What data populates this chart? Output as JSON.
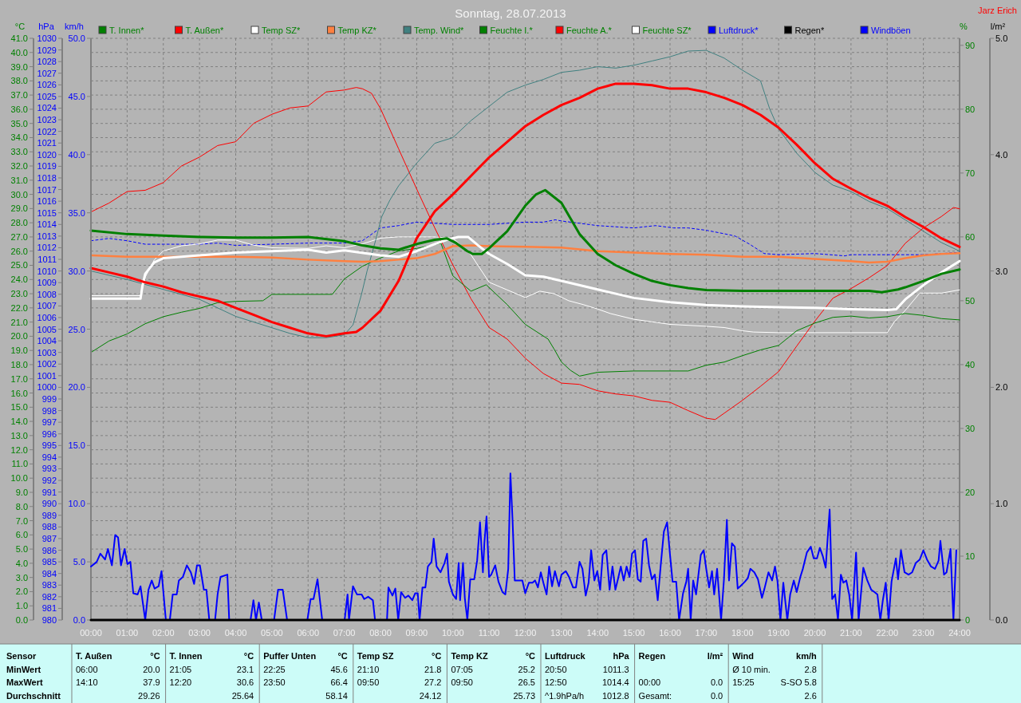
{
  "chart_data": [
    {
      "type": "line",
      "title": "Sonntag, 28.07.2013",
      "annotations": [
        "Jarz Erich"
      ],
      "legend": "top",
      "grid": true,
      "line_style": "solid",
      "ylabel": "°C",
      "y2label": "%",
      "y3label": "hPa",
      "xlim": [
        0,
        24
      ],
      "xticks": [
        {
          "value": 0,
          "label": "00:00"
        },
        {
          "value": 1,
          "label": "01:00"
        },
        {
          "value": 2,
          "label": "02:00"
        },
        {
          "value": 3,
          "label": "03:00"
        },
        {
          "value": 4,
          "label": "04:00"
        },
        {
          "value": 5,
          "label": "05:00"
        },
        {
          "value": 6,
          "label": "06:00"
        },
        {
          "value": 7,
          "label": "07:00"
        },
        {
          "value": 8,
          "label": "08:00"
        },
        {
          "value": 9,
          "label": "09:00"
        },
        {
          "value": 10,
          "label": "10:00"
        },
        {
          "value": 11,
          "label": "11:00"
        },
        {
          "value": 12,
          "label": "12:00"
        },
        {
          "value": 13,
          "label": "13:00"
        },
        {
          "value": 14,
          "label": "14:00"
        },
        {
          "value": 15,
          "label": "15:00"
        },
        {
          "value": 16,
          "label": "16:00"
        },
        {
          "value": 17,
          "label": "17:00"
        },
        {
          "value": 18,
          "label": "18:00"
        },
        {
          "value": 19,
          "label": "19:00"
        },
        {
          "value": 20,
          "label": "20:00"
        },
        {
          "value": 21,
          "label": "21:00"
        },
        {
          "value": 22,
          "label": "22:00"
        },
        {
          "value": 23,
          "label": "23:00"
        },
        {
          "value": 24,
          "label": "24:00"
        }
      ],
      "ylim": [
        0,
        41
      ],
      "yticks": [
        {
          "value": 0,
          "label": "0.0"
        },
        {
          "value": 1,
          "label": "1.0"
        },
        {
          "value": 2,
          "label": "2.0"
        },
        {
          "value": 3,
          "label": "3.0"
        },
        {
          "value": 4,
          "label": "4.0"
        },
        {
          "value": 5,
          "label": "5.0"
        },
        {
          "value": 6,
          "label": "6.0"
        },
        {
          "value": 7,
          "label": "7.0"
        },
        {
          "value": 8,
          "label": "8.0"
        },
        {
          "value": 9,
          "label": "9.0"
        },
        {
          "value": 10,
          "label": "10.0"
        },
        {
          "value": 11,
          "label": "11.0"
        },
        {
          "value": 12,
          "label": "12.0"
        },
        {
          "value": 13,
          "label": "13.0"
        },
        {
          "value": 14,
          "label": "14.0"
        },
        {
          "value": 15,
          "label": "15.0"
        },
        {
          "value": 16,
          "label": "16.0"
        },
        {
          "value": 17,
          "label": "17.0"
        },
        {
          "value": 18,
          "label": "18.0"
        },
        {
          "value": 19,
          "label": "19.0"
        },
        {
          "value": 20,
          "label": "20.0"
        },
        {
          "value": 21,
          "label": "21.0"
        },
        {
          "value": 22,
          "label": "22.0"
        },
        {
          "value": 23,
          "label": "23.0"
        },
        {
          "value": 24,
          "label": "24.0"
        },
        {
          "value": 25,
          "label": "25.0"
        },
        {
          "value": 26,
          "label": "26.0"
        },
        {
          "value": 27,
          "label": "27.0"
        },
        {
          "value": 28,
          "label": "28.0"
        },
        {
          "value": 29,
          "label": "29.0"
        },
        {
          "value": 30,
          "label": "30.0"
        },
        {
          "value": 31,
          "label": "31.0"
        },
        {
          "value": 32,
          "label": "32.0"
        },
        {
          "value": 33,
          "label": "33.0"
        },
        {
          "value": 34,
          "label": "34.0"
        },
        {
          "value": 35,
          "label": "35.0"
        },
        {
          "value": 36,
          "label": "36.0"
        },
        {
          "value": 37,
          "label": "37.0"
        },
        {
          "value": 38,
          "label": "38.0"
        },
        {
          "value": 39,
          "label": "39.0"
        },
        {
          "value": 40,
          "label": "40.0"
        },
        {
          "value": 41,
          "label": "41.0"
        }
      ],
      "y2lim": [
        0,
        91.1
      ],
      "y2ticks": [
        0,
        10,
        20,
        30,
        40,
        50,
        60,
        70,
        80,
        90
      ],
      "y3lim": [
        980,
        1030
      ],
      "y3ticks": [
        980,
        981,
        982,
        983,
        984,
        985,
        986,
        987,
        988,
        989,
        990,
        991,
        992,
        993,
        994,
        995,
        996,
        997,
        998,
        999,
        1000,
        1001,
        1002,
        1003,
        1004,
        1005,
        1006,
        1007,
        1008,
        1009,
        1010,
        1011,
        1012,
        1013,
        1014,
        1015,
        1016,
        1017,
        1018,
        1019,
        1020,
        1021,
        1022,
        1023,
        1024,
        1025,
        1026,
        1027,
        1028,
        1029,
        1030
      ],
      "series": [
        {
          "name": "T. Innen*",
          "color": "#008000",
          "axis": "y",
          "x": [
            0,
            1,
            2,
            3,
            4,
            5,
            6,
            7,
            7.5,
            8,
            8.5,
            9,
            9.5,
            9.83,
            10.07,
            10.4,
            10.55,
            10.8,
            11,
            11.5,
            12,
            12.3,
            12.55,
            13,
            13.5,
            14,
            14.5,
            15,
            15.5,
            16,
            16.5,
            17,
            18,
            19,
            20,
            21,
            21.5,
            21.85,
            22.3,
            22.5,
            23,
            23.5,
            24
          ],
          "values": [
            27.45,
            27.2,
            27.1,
            27.0,
            26.95,
            26.95,
            27.0,
            26.7,
            26.4,
            26.2,
            26.1,
            26.5,
            26.8,
            26.9,
            26.6,
            26.0,
            25.8,
            25.8,
            26.2,
            27.4,
            29.2,
            30.0,
            30.3,
            29.4,
            27.2,
            25.8,
            25.0,
            24.4,
            23.9,
            23.6,
            23.4,
            23.25,
            23.2,
            23.2,
            23.2,
            23.2,
            23.2,
            23.1,
            23.3,
            23.45,
            23.9,
            24.4,
            24.7
          ]
        },
        {
          "name": "T. Außen*",
          "color": "#ff0000",
          "axis": "y",
          "x": [
            0,
            0.5,
            1,
            1.5,
            2,
            2.5,
            3,
            3.5,
            4,
            4.5,
            5,
            5.5,
            6,
            6.5,
            7,
            7.33,
            7.5,
            8,
            8.5,
            9,
            9.5,
            10,
            10.5,
            11,
            11.5,
            12,
            12.5,
            13,
            13.5,
            14,
            14.5,
            15,
            15.5,
            16,
            16.5,
            17,
            17.5,
            18,
            18.5,
            19,
            19.5,
            20,
            20.5,
            21,
            21.5,
            22,
            22.5,
            23,
            23.5,
            24
          ],
          "values": [
            24.8,
            24.5,
            24.2,
            23.8,
            23.5,
            23.1,
            22.8,
            22.5,
            22.0,
            21.5,
            21.0,
            20.6,
            20.2,
            20.0,
            20.2,
            20.3,
            20.6,
            21.8,
            23.9,
            26.9,
            28.8,
            30.0,
            31.3,
            32.6,
            33.7,
            34.8,
            35.6,
            36.3,
            36.8,
            37.45,
            37.8,
            37.8,
            37.7,
            37.45,
            37.45,
            37.2,
            36.8,
            36.3,
            35.6,
            34.7,
            33.5,
            32.2,
            31.1,
            30.4,
            29.75,
            29.2,
            28.4,
            27.7,
            26.9,
            26.3
          ]
        },
        {
          "name": "Temp SZ*",
          "color": "#ffffff",
          "axis": "y",
          "x": [
            0,
            1.37,
            1.42,
            1.5,
            1.75,
            2,
            2.5,
            3,
            4,
            5,
            6,
            6.5,
            7,
            8,
            8.5,
            9,
            9.5,
            9.83,
            10.15,
            10.42,
            10.7,
            11,
            11.5,
            12,
            12.5,
            13,
            14,
            15,
            16,
            17,
            18,
            19,
            20,
            21,
            22,
            22.25,
            22.5,
            23,
            23.5,
            24
          ],
          "values": [
            22.65,
            22.65,
            23.5,
            24.4,
            25.2,
            25.5,
            25.6,
            25.7,
            25.9,
            26.0,
            26.1,
            25.9,
            26.05,
            25.7,
            25.6,
            26.0,
            26.5,
            26.8,
            27.0,
            27.0,
            26.4,
            25.8,
            25.1,
            24.3,
            24.2,
            23.9,
            23.3,
            22.7,
            22.4,
            22.2,
            22.1,
            22.05,
            22.0,
            21.9,
            21.85,
            21.9,
            22.6,
            23.6,
            24.5,
            25.3
          ]
        },
        {
          "name": "Temp KZ*",
          "color": "#ff8040",
          "axis": "y",
          "x": [
            0,
            1,
            2,
            3,
            4,
            5,
            6,
            7,
            7.5,
            8,
            8.5,
            9,
            9.5,
            10,
            10.5,
            11,
            12,
            13,
            14,
            15,
            16,
            17,
            18,
            19,
            20,
            21,
            21.5,
            22,
            22.5,
            23,
            23.5,
            24
          ],
          "values": [
            25.7,
            25.6,
            25.6,
            25.6,
            25.6,
            25.55,
            25.4,
            25.3,
            25.25,
            25.3,
            25.4,
            25.5,
            25.8,
            26.35,
            26.4,
            26.35,
            26.3,
            26.25,
            26.0,
            25.9,
            25.8,
            25.75,
            25.6,
            25.6,
            25.45,
            25.3,
            25.2,
            25.25,
            25.5,
            25.7,
            25.8,
            25.85
          ]
        },
        {
          "name": "Temp. Wind*",
          "color": "#408080",
          "axis": "y",
          "x": [
            0,
            1,
            2,
            3,
            4,
            5,
            5.5,
            6,
            6.5,
            7,
            7.24,
            7.48,
            7.63,
            7.87,
            8.03,
            8.26,
            8.5,
            9,
            9.5,
            10,
            10.5,
            11,
            11.5,
            12,
            12.5,
            13,
            13.5,
            14,
            14.5,
            15,
            15.5,
            16,
            16.5,
            17,
            17.5,
            18,
            18.5,
            18.75,
            19,
            19.5,
            20,
            20.5,
            21,
            21.5,
            22,
            22.5,
            23,
            23.5,
            24
          ],
          "values": [
            24.6,
            24.0,
            23.3,
            22.6,
            21.4,
            20.6,
            20.2,
            19.9,
            19.9,
            20.1,
            20.8,
            23.0,
            24.6,
            26.8,
            28.4,
            29.6,
            30.6,
            32.2,
            33.6,
            34.0,
            35.2,
            36.2,
            37.2,
            37.7,
            38.1,
            38.6,
            38.75,
            39.0,
            38.9,
            39.1,
            39.4,
            39.7,
            40.1,
            40.15,
            39.6,
            38.75,
            38.0,
            36.05,
            34.6,
            32.9,
            31.55,
            30.65,
            30.2,
            29.5,
            29.0,
            28.2,
            27.4,
            26.6,
            26.0
          ]
        },
        {
          "name": "Feuchte I.*",
          "color": "#008000",
          "axis": "y2",
          "x": [
            0,
            0.5,
            1,
            1.5,
            2,
            2.5,
            3,
            3.5,
            4,
            4.75,
            5,
            6,
            6.67,
            7,
            7.5,
            8,
            8.5,
            9,
            9.5,
            9.67,
            10,
            10.5,
            10.92,
            11.5,
            12,
            12.3,
            12.63,
            12.8,
            13,
            13.25,
            13.5,
            14,
            15,
            16,
            16.5,
            17,
            17.5,
            18,
            18.5,
            19,
            19.5,
            20,
            20.5,
            21,
            21.5,
            22,
            22.5,
            23,
            23.5,
            24
          ],
          "values": [
            41.9,
            43.7,
            44.8,
            46.4,
            47.5,
            48.2,
            48.8,
            49.7,
            49.9,
            50.0,
            51.0,
            51.0,
            51.0,
            53.4,
            55.4,
            56.7,
            57.8,
            58.2,
            58.8,
            59.0,
            53.9,
            51.5,
            52.5,
            49.4,
            46.3,
            45.2,
            44.0,
            42.4,
            40.4,
            39.1,
            38.2,
            38.8,
            39.0,
            39.0,
            39.0,
            39.9,
            40.4,
            41.4,
            42.3,
            43.0,
            45.3,
            46.5,
            47.4,
            47.6,
            47.3,
            47.5,
            48.0,
            47.7,
            47.2,
            47.0
          ]
        },
        {
          "name": "Feuchte A.*",
          "color": "#ff0000",
          "axis": "y2",
          "x": [
            0,
            0.5,
            1,
            1.5,
            2,
            2.5,
            3,
            3.5,
            4,
            4.5,
            5,
            5.5,
            6,
            6.5,
            7,
            7.33,
            7.5,
            7.75,
            8,
            8.5,
            9,
            9.5,
            10,
            10.5,
            11,
            11.5,
            12,
            12.5,
            13,
            13.5,
            14,
            14.5,
            15,
            15.5,
            16,
            16.5,
            17,
            17.25,
            17.5,
            18,
            18.5,
            19,
            19.5,
            20,
            20.5,
            21,
            21.5,
            22,
            22.5,
            23,
            23.5,
            23.83,
            24
          ],
          "values": [
            63.9,
            65.3,
            67.1,
            67.3,
            68.5,
            71.1,
            72.5,
            74.3,
            74.9,
            77.8,
            79.2,
            80.2,
            80.5,
            82.7,
            83.0,
            83.4,
            83.2,
            82.5,
            80.1,
            73.8,
            67.5,
            61.4,
            55.6,
            50.3,
            45.8,
            44.0,
            41.0,
            38.6,
            37.1,
            36.9,
            35.9,
            35.4,
            35.1,
            34.4,
            34.1,
            32.8,
            31.6,
            31.4,
            32.4,
            34.4,
            36.6,
            38.9,
            42.9,
            46.8,
            50.4,
            51.9,
            53.6,
            55.5,
            59.0,
            61.4,
            63.2,
            64.6,
            64.4
          ]
        },
        {
          "name": "Feuchte SZ*",
          "color": "#ffffff",
          "axis": "y2",
          "x": [
            0,
            1.37,
            1.5,
            1.75,
            2,
            2.5,
            3,
            3.5,
            4,
            4.5,
            5,
            6,
            6.5,
            7,
            7.5,
            8,
            8.5,
            9,
            9.5,
            10,
            10.5,
            11,
            11.5,
            12,
            12.4,
            12.8,
            13.2,
            13.6,
            14,
            14.35,
            15,
            15.5,
            16,
            17,
            17.5,
            18,
            18.3,
            19,
            22,
            22.2,
            22.5,
            22.9,
            23.5,
            24
          ],
          "values": [
            50.8,
            50.8,
            53.7,
            56.4,
            57.8,
            58.6,
            58.9,
            59.5,
            59.5,
            58.7,
            58.3,
            58.2,
            58.6,
            58.3,
            58.9,
            59.8,
            60.0,
            60.0,
            60.0,
            59.8,
            57.2,
            52.9,
            51.7,
            50.5,
            51.5,
            51.1,
            50.0,
            49.4,
            48.7,
            48.0,
            47.1,
            46.7,
            46.3,
            46.0,
            45.8,
            45.3,
            45.1,
            45.0,
            45.0,
            46.7,
            48.5,
            51.2,
            51.2,
            51.7
          ]
        },
        {
          "name": "Luftdruck*",
          "color": "#0000ff",
          "axis": "y3",
          "line_style": "dashed",
          "x": [
            0,
            0.5,
            1,
            1.5,
            2,
            3,
            3.5,
            4,
            5,
            6,
            7,
            7.5,
            8,
            8.5,
            9,
            9.5,
            10,
            10.5,
            11,
            11.5,
            12,
            12.5,
            12.83,
            13,
            13.5,
            14,
            15,
            15.6,
            16.1,
            16.5,
            17,
            17.5,
            17.8,
            18.2,
            18.6,
            19,
            20,
            20.83,
            21,
            22,
            23,
            24
          ],
          "values": [
            1012.6,
            1012.8,
            1012.6,
            1012.3,
            1012.3,
            1012.3,
            1012.4,
            1012.2,
            1012.3,
            1012.4,
            1012.4,
            1012.6,
            1013.7,
            1013.9,
            1014.2,
            1014.1,
            1014.0,
            1014.0,
            1014.0,
            1014.1,
            1014.2,
            1014.2,
            1014.4,
            1014.3,
            1014.1,
            1013.9,
            1013.7,
            1013.9,
            1013.7,
            1013.7,
            1013.5,
            1013.2,
            1013.0,
            1012.3,
            1011.5,
            1011.4,
            1011.5,
            1011.3,
            1011.4,
            1011.4,
            1011.4,
            1011.6
          ]
        }
      ]
    },
    {
      "type": "line",
      "legend": "top",
      "line_style": "solid",
      "tick_labels": "y",
      "xlim": [
        0,
        24
      ],
      "ylabel": "km/h",
      "ylim": [
        0,
        50
      ],
      "yticks": [
        {
          "value": 0,
          "label": "0.0"
        },
        {
          "value": 5,
          "label": "5.0"
        },
        {
          "value": 10,
          "label": "10.0"
        },
        {
          "value": 15,
          "label": "15.0"
        },
        {
          "value": 20,
          "label": "20.0"
        },
        {
          "value": 25,
          "label": "25.0"
        },
        {
          "value": 30,
          "label": "30.0"
        },
        {
          "value": 35,
          "label": "35.0"
        },
        {
          "value": 40,
          "label": "40.0"
        },
        {
          "value": 45,
          "label": "45.0"
        },
        {
          "value": 50,
          "label": "50.0"
        }
      ],
      "y2label": "l/m²",
      "y2lim": [
        0,
        5
      ],
      "y2ticks": [
        {
          "value": 0,
          "label": "0.0"
        },
        {
          "value": 1,
          "label": "1.0"
        },
        {
          "value": 2,
          "label": "2.0"
        },
        {
          "value": 3,
          "label": "3.0"
        },
        {
          "value": 4,
          "label": "4.0"
        },
        {
          "value": 5,
          "label": "5.0"
        }
      ],
      "series": [
        {
          "name": "Regen*",
          "color": "#000000",
          "axis": "y2",
          "x": [
            0,
            1,
            2,
            3,
            4,
            5,
            6,
            7,
            8,
            9,
            10,
            11,
            12,
            13,
            14,
            15,
            16,
            17,
            18,
            19,
            20,
            21,
            22,
            23,
            24
          ],
          "values": [
            0,
            0,
            0,
            0,
            0,
            0,
            0,
            0,
            0,
            0,
            0,
            0,
            0,
            0,
            0,
            0,
            0,
            0,
            0,
            0,
            0,
            0,
            0,
            0,
            0
          ]
        },
        {
          "name": "Windböen",
          "color": "#0000ff",
          "axis": "y",
          "x": [
            0,
            0.16,
            0.26,
            0.39,
            0.47,
            0.58,
            0.67,
            0.75,
            0.83,
            0.93,
            1.01,
            1.09,
            1.17,
            1.29,
            1.37,
            1.5,
            1.59,
            1.68,
            1.76,
            1.87,
            1.95,
            2.07,
            2.18,
            2.26,
            2.37,
            2.43,
            2.54,
            2.65,
            2.76,
            2.85,
            2.93,
            3.01,
            3.12,
            3.19,
            3.27,
            3.43,
            3.5,
            3.58,
            3.77,
            3.82,
            4.41,
            4.49,
            4.56,
            4.64,
            4.72,
            5.06,
            5.17,
            5.3,
            5.42,
            5.98,
            6.07,
            6.15,
            6.26,
            6.39,
            7.01,
            7.09,
            7.13,
            7.24,
            7.35,
            7.48,
            7.55,
            7.66,
            7.79,
            7.85,
            8.18,
            8.22,
            8.33,
            8.41,
            8.49,
            8.57,
            8.68,
            8.77,
            8.88,
            8.96,
            9.03,
            9.08,
            9.16,
            9.24,
            9.31,
            9.41,
            9.47,
            9.55,
            9.66,
            9.77,
            9.84,
            9.89,
            10.0,
            10.09,
            10.16,
            10.2,
            10.28,
            10.33,
            10.4,
            10.48,
            10.59,
            10.67,
            10.75,
            10.83,
            10.87,
            10.93,
            11.0,
            11.06,
            11.17,
            11.26,
            11.37,
            11.45,
            11.53,
            11.59,
            11.65,
            11.71,
            11.92,
            12.0,
            12.1,
            12.2,
            12.27,
            12.35,
            12.43,
            12.5,
            12.59,
            12.66,
            12.74,
            12.82,
            12.93,
            13.0,
            13.12,
            13.21,
            13.32,
            13.4,
            13.5,
            13.58,
            13.67,
            13.75,
            13.82,
            13.91,
            13.99,
            14.07,
            14.14,
            14.24,
            14.33,
            14.41,
            14.49,
            14.56,
            14.64,
            14.72,
            14.8,
            14.88,
            14.95,
            15.03,
            15.11,
            15.19,
            15.26,
            15.34,
            15.42,
            15.5,
            15.58,
            15.66,
            15.74,
            15.83,
            15.92,
            16.0,
            16.07,
            16.17,
            16.25,
            16.36,
            16.45,
            16.5,
            16.57,
            16.64,
            16.72,
            16.85,
            16.93,
            17.0,
            17.08,
            17.16,
            17.22,
            17.3,
            17.41,
            17.49,
            17.57,
            17.63,
            17.71,
            17.79,
            17.87,
            17.94,
            18.07,
            18.15,
            18.22,
            18.33,
            18.43,
            18.54,
            18.61,
            18.72,
            18.82,
            18.9,
            18.97,
            19.05,
            19.13,
            19.24,
            19.32,
            19.42,
            19.5,
            19.6,
            19.67,
            19.78,
            19.89,
            19.97,
            20.06,
            20.14,
            20.22,
            20.3,
            20.41,
            20.48,
            20.56,
            20.64,
            20.72,
            20.79,
            20.87,
            20.95,
            21.03,
            21.14,
            21.21,
            21.34,
            21.45,
            21.56,
            21.65,
            21.73,
            21.81,
            21.88,
            21.96,
            22.04,
            22.12,
            22.24,
            22.3,
            22.38,
            22.48,
            22.59,
            22.69,
            22.79,
            22.9,
            23.0,
            23.1,
            23.21,
            23.32,
            23.42,
            23.47,
            23.57,
            23.64,
            23.75,
            23.83,
            23.91
          ],
          "values": [
            4.6,
            5.0,
            5.7,
            5.2,
            6.1,
            4.7,
            7.3,
            7.1,
            4.7,
            6.1,
            4.8,
            5.0,
            2.3,
            2.2,
            2.9,
            0,
            2.6,
            3.4,
            2.7,
            2.9,
            4.2,
            0,
            0,
            2.2,
            2.2,
            3.4,
            3.7,
            4.7,
            4.1,
            3.1,
            4.7,
            4.7,
            2.6,
            2.6,
            0,
            0,
            2.2,
            3.7,
            3.9,
            0,
            0,
            1.7,
            0,
            1.5,
            0,
            0,
            2.6,
            2.6,
            0,
            0,
            1.8,
            1.8,
            3.5,
            0,
            0,
            2.2,
            0,
            2.9,
            2.2,
            2.2,
            1.8,
            2.0,
            1.7,
            0,
            0,
            2.8,
            2.1,
            2.7,
            0,
            2.4,
            1.9,
            2.1,
            1.7,
            2.3,
            2.3,
            0,
            2.8,
            2.8,
            4.6,
            5.0,
            7.0,
            4.6,
            4.1,
            4.9,
            5.7,
            3.3,
            2.2,
            1.8,
            4.9,
            1.7,
            4.9,
            1.9,
            0,
            3.5,
            3.5,
            5.1,
            8.4,
            4.1,
            6.6,
            8.9,
            3.7,
            3.9,
            4.7,
            3.3,
            2.4,
            2.2,
            4.4,
            12.6,
            8.5,
            3.4,
            3.4,
            2.3,
            3.2,
            3.2,
            3.4,
            2.8,
            4.1,
            3.2,
            2.2,
            4.6,
            2.9,
            4.2,
            2.9,
            3.9,
            4.2,
            3.7,
            2.8,
            2.8,
            5.0,
            4.4,
            2.1,
            3.2,
            6.0,
            3.4,
            4.2,
            2.6,
            5.6,
            6.0,
            2.6,
            4.6,
            2.6,
            3.5,
            4.6,
            3.4,
            4.6,
            3.7,
            5.7,
            6.0,
            3.5,
            3.3,
            6.8,
            7.0,
            4.7,
            3.5,
            3.9,
            1.7,
            4.6,
            7.6,
            8.4,
            5.6,
            3.3,
            3.3,
            0,
            2.3,
            3.3,
            4.4,
            0,
            3.4,
            2.2,
            5.6,
            6.0,
            4.4,
            2.8,
            4.2,
            2.2,
            4.4,
            0,
            3.5,
            8.6,
            3.4,
            6.6,
            6.3,
            2.7,
            2.9,
            3.3,
            3.6,
            4.4,
            4.1,
            3.5,
            1.9,
            2.7,
            4.1,
            3.4,
            4.6,
            3.3,
            0,
            3.2,
            0,
            2.2,
            3.4,
            2.4,
            3.7,
            4.4,
            5.8,
            6.3,
            5.3,
            5.3,
            6.2,
            5.5,
            4.5,
            9.5,
            1.8,
            2.2,
            0,
            3.9,
            3.2,
            3.4,
            2.2,
            0,
            5.8,
            0,
            4.5,
            3.4,
            2.6,
            2.4,
            2.2,
            0,
            1.7,
            3.2,
            0,
            3.3,
            5.3,
            3.5,
            6.0,
            4.1,
            3.9,
            4.1,
            4.9,
            5.2,
            6.0,
            5.2,
            4.6,
            4.4,
            5.1,
            6.8,
            3.9,
            4.1,
            6.1,
            0,
            6.0
          ]
        }
      ]
    },
    {
      "type": "other",
      "ylabel": "Sensor",
      "categories": [
        "T. Außen",
        "°C",
        "T. Innen",
        "°C",
        "Puffer Unten",
        "°C",
        "Temp SZ",
        "°C",
        "Temp KZ",
        "°C",
        "Luftdruck",
        "hPa",
        "Regen",
        "l/m²",
        "Wind",
        "km/h"
      ],
      "y_categories": [
        "MinWert",
        "MaxWert",
        "Durchschnitt"
      ],
      "cell_labels": [
        [
          "06:00",
          "20.0",
          "21:05",
          "23.1",
          "22:25",
          "45.6",
          "21:10",
          "21.8",
          "07:05",
          "25.2",
          "20:50",
          "1011.3",
          null,
          null,
          "Ø 10 min.",
          "2.8"
        ],
        [
          "14:10",
          "37.9",
          "12:20",
          "30.6",
          "23:50",
          "66.4",
          "09:50",
          "27.2",
          "09:50",
          "26.5",
          "12:50",
          "1014.4",
          "00:00",
          "0.0",
          "15:25",
          "S-SO 5.8"
        ],
        [
          null,
          "29.26",
          null,
          "25.64",
          null,
          "58.14",
          null,
          "24.12",
          null,
          "25.73",
          "^1.9hPa/h",
          "1012.8",
          "Gesamt:",
          "0.0",
          null,
          "2.6"
        ]
      ]
    }
  ]
}
